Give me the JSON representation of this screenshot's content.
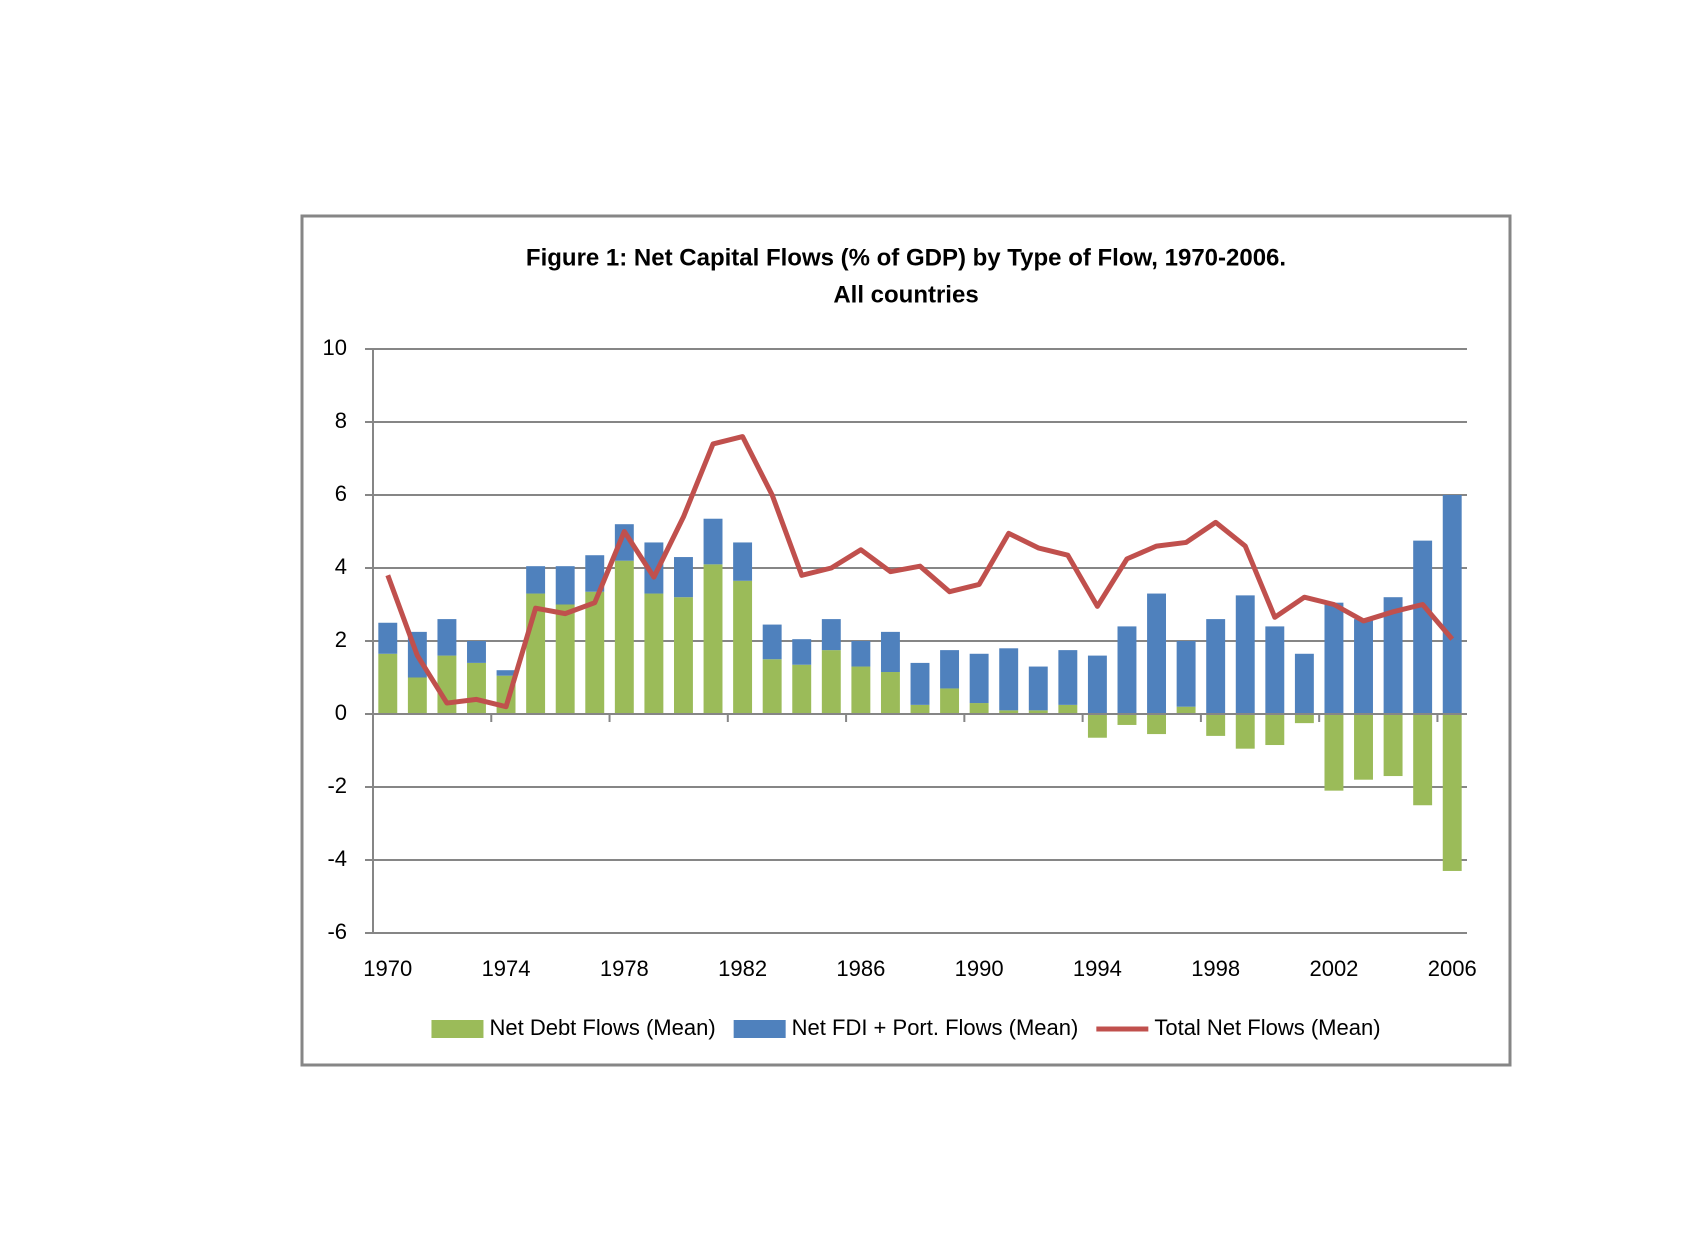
{
  "chart_data": {
    "type": "bar",
    "title": "Figure 1: Net Capital Flows (% of GDP) by Type of Flow, 1970-2006.",
    "subtitle": "All countries",
    "categories": [
      "1970",
      null,
      null,
      null,
      "1974",
      null,
      null,
      null,
      "1978",
      null,
      null,
      null,
      "1982",
      null,
      null,
      null,
      "1986",
      null,
      null,
      null,
      "1990",
      null,
      null,
      null,
      "1994",
      null,
      null,
      null,
      "1998",
      null,
      null,
      null,
      "2002",
      null,
      null,
      null,
      "2006"
    ],
    "series": [
      {
        "name": "Net Debt Flows (Mean)",
        "type": "bar",
        "color": "#9bbb59",
        "values": [
          1.65,
          1.0,
          1.6,
          1.4,
          1.05,
          3.3,
          3.0,
          3.35,
          4.2,
          3.3,
          3.2,
          4.1,
          3.65,
          1.5,
          1.35,
          1.75,
          1.3,
          1.15,
          0.25,
          0.7,
          0.3,
          0.1,
          0.1,
          0.25,
          -0.65,
          -0.3,
          -0.55,
          0.2,
          -0.6,
          -0.95,
          -0.85,
          -0.25,
          -2.1,
          -1.8,
          -1.7,
          -2.5,
          -4.3
        ]
      },
      {
        "name": "Net FDI + Port. Flows (Mean)",
        "type": "bar",
        "color": "#4f81bd",
        "values": [
          0.85,
          1.25,
          1.0,
          0.6,
          0.15,
          0.75,
          1.05,
          1.0,
          1.0,
          1.4,
          1.1,
          1.25,
          1.05,
          0.95,
          0.7,
          0.85,
          0.7,
          1.1,
          1.15,
          1.05,
          1.35,
          1.7,
          1.2,
          1.5,
          1.6,
          2.4,
          3.3,
          1.8,
          2.6,
          3.25,
          2.4,
          1.65,
          3.05,
          2.6,
          3.2,
          4.75,
          6.0
        ]
      },
      {
        "name": "Total Net Flows (Mean)",
        "type": "line",
        "color": "#c0504d",
        "values": [
          3.8,
          1.6,
          0.3,
          0.4,
          0.2,
          2.9,
          2.75,
          3.05,
          5.0,
          3.75,
          5.4,
          7.4,
          7.6,
          6.0,
          3.8,
          4.0,
          4.5,
          3.9,
          4.05,
          3.35,
          3.55,
          4.95,
          4.55,
          4.35,
          2.95,
          4.25,
          4.6,
          4.7,
          5.25,
          4.6,
          2.65,
          3.2,
          3.0,
          2.55,
          2.8,
          3.0,
          2.05
        ]
      }
    ],
    "ylim": [
      -6,
      10
    ],
    "yticks": [
      -6,
      -4,
      -2,
      0,
      2,
      4,
      6,
      8,
      10
    ],
    "grid": true,
    "legend": "bottom"
  }
}
